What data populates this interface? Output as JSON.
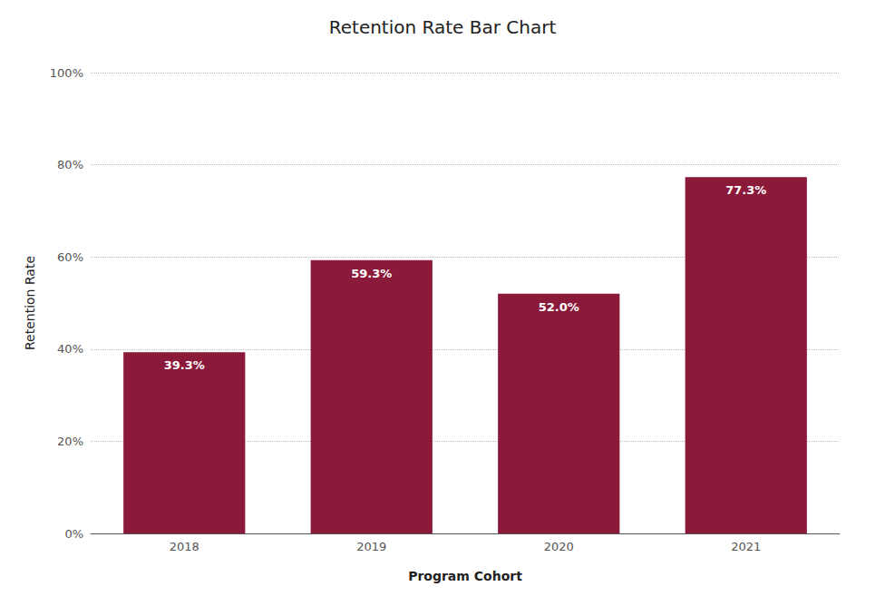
{
  "chart_data": {
    "type": "bar",
    "title": "Retention Rate Bar Chart",
    "xlabel": "Program Cohort",
    "ylabel": "Retention Rate",
    "categories": [
      "2018",
      "2019",
      "2020",
      "2021"
    ],
    "values": [
      39.3,
      59.3,
      52.0,
      77.3
    ],
    "value_labels": [
      "39.3%",
      "59.3%",
      "52.0%",
      "77.3%"
    ],
    "color": "#8B1A3A",
    "ylim": [
      0,
      100
    ],
    "yticks": [
      {
        "value": 0,
        "label": "0%"
      },
      {
        "value": 20,
        "label": "20%"
      },
      {
        "value": 40,
        "label": "40%"
      },
      {
        "value": 60,
        "label": "60%"
      },
      {
        "value": 80,
        "label": "80%"
      },
      {
        "value": 100,
        "label": "100%"
      }
    ],
    "grid": true,
    "data_labels": true
  }
}
